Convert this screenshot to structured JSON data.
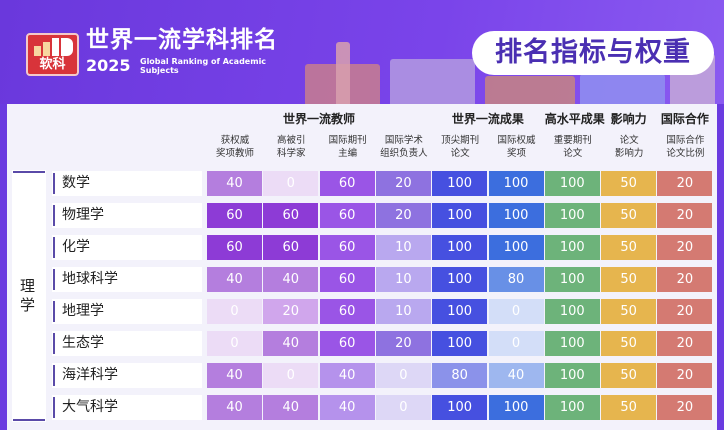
{
  "header": {
    "logo_text": "软科",
    "title": "世界一流学科排名",
    "year": "2025",
    "subtitle": "Global Ranking of Academic Subjects",
    "pill": "排名指标与权重"
  },
  "groups": [
    {
      "label": "世界一流教师",
      "cols": [
        0,
        3
      ]
    },
    {
      "label": "世界一流成果",
      "cols": [
        4,
        5
      ]
    },
    {
      "label": "高水平成果",
      "cols": [
        6,
        6
      ]
    },
    {
      "label": "影响力",
      "cols": [
        7,
        7
      ]
    },
    {
      "label": "国际合作",
      "cols": [
        8,
        8
      ]
    }
  ],
  "columns": [
    [
      "获权威",
      "奖项教师"
    ],
    [
      "高被引",
      "科学家"
    ],
    [
      "国际期刊",
      "主编"
    ],
    [
      "国际学术",
      "组织负责人"
    ],
    [
      "顶尖期刊",
      "论文"
    ],
    [
      "国际权威",
      "奖项"
    ],
    [
      "重要期刊",
      "论文"
    ],
    [
      "论文",
      "影响力"
    ],
    [
      "国际合作",
      "论文比例"
    ]
  ],
  "category": "理学",
  "rows": [
    {
      "subject": "数学",
      "values": [
        40,
        0,
        60,
        20,
        100,
        100,
        100,
        50,
        20
      ]
    },
    {
      "subject": "物理学",
      "values": [
        60,
        60,
        60,
        20,
        100,
        100,
        100,
        50,
        20
      ]
    },
    {
      "subject": "化学",
      "values": [
        60,
        60,
        60,
        10,
        100,
        100,
        100,
        50,
        20
      ]
    },
    {
      "subject": "地球科学",
      "values": [
        40,
        40,
        60,
        10,
        100,
        80,
        100,
        50,
        20
      ]
    },
    {
      "subject": "地理学",
      "values": [
        0,
        20,
        60,
        10,
        100,
        0,
        100,
        50,
        20
      ]
    },
    {
      "subject": "生态学",
      "values": [
        0,
        40,
        60,
        20,
        100,
        0,
        100,
        50,
        20
      ]
    },
    {
      "subject": "海洋科学",
      "values": [
        40,
        0,
        40,
        0,
        80,
        40,
        100,
        50,
        20
      ]
    },
    {
      "subject": "大气科学",
      "values": [
        40,
        40,
        40,
        0,
        100,
        100,
        100,
        50,
        20
      ]
    }
  ],
  "colors": {
    "teacher": {
      "60": "#8d3bd6",
      "40": "#b47ede",
      "20": "#d0a6ec",
      "0": "#ecdcf6"
    },
    "editor": {
      "60": "#9a55e6",
      "40": "#b592ec"
    },
    "org": {
      "20": "#8e72e0",
      "10": "#b9a8ef",
      "0": "#ddd7f6"
    },
    "top": {
      "100": "#4650e0",
      "80": "#8b92ea"
    },
    "award": {
      "100": "#3c6ede",
      "80": "#6890e6",
      "40": "#9eb7ef",
      "0": "#d3def8"
    },
    "green": "#6db37a",
    "yellow": "#e6b54e",
    "red": "#d47a72"
  }
}
